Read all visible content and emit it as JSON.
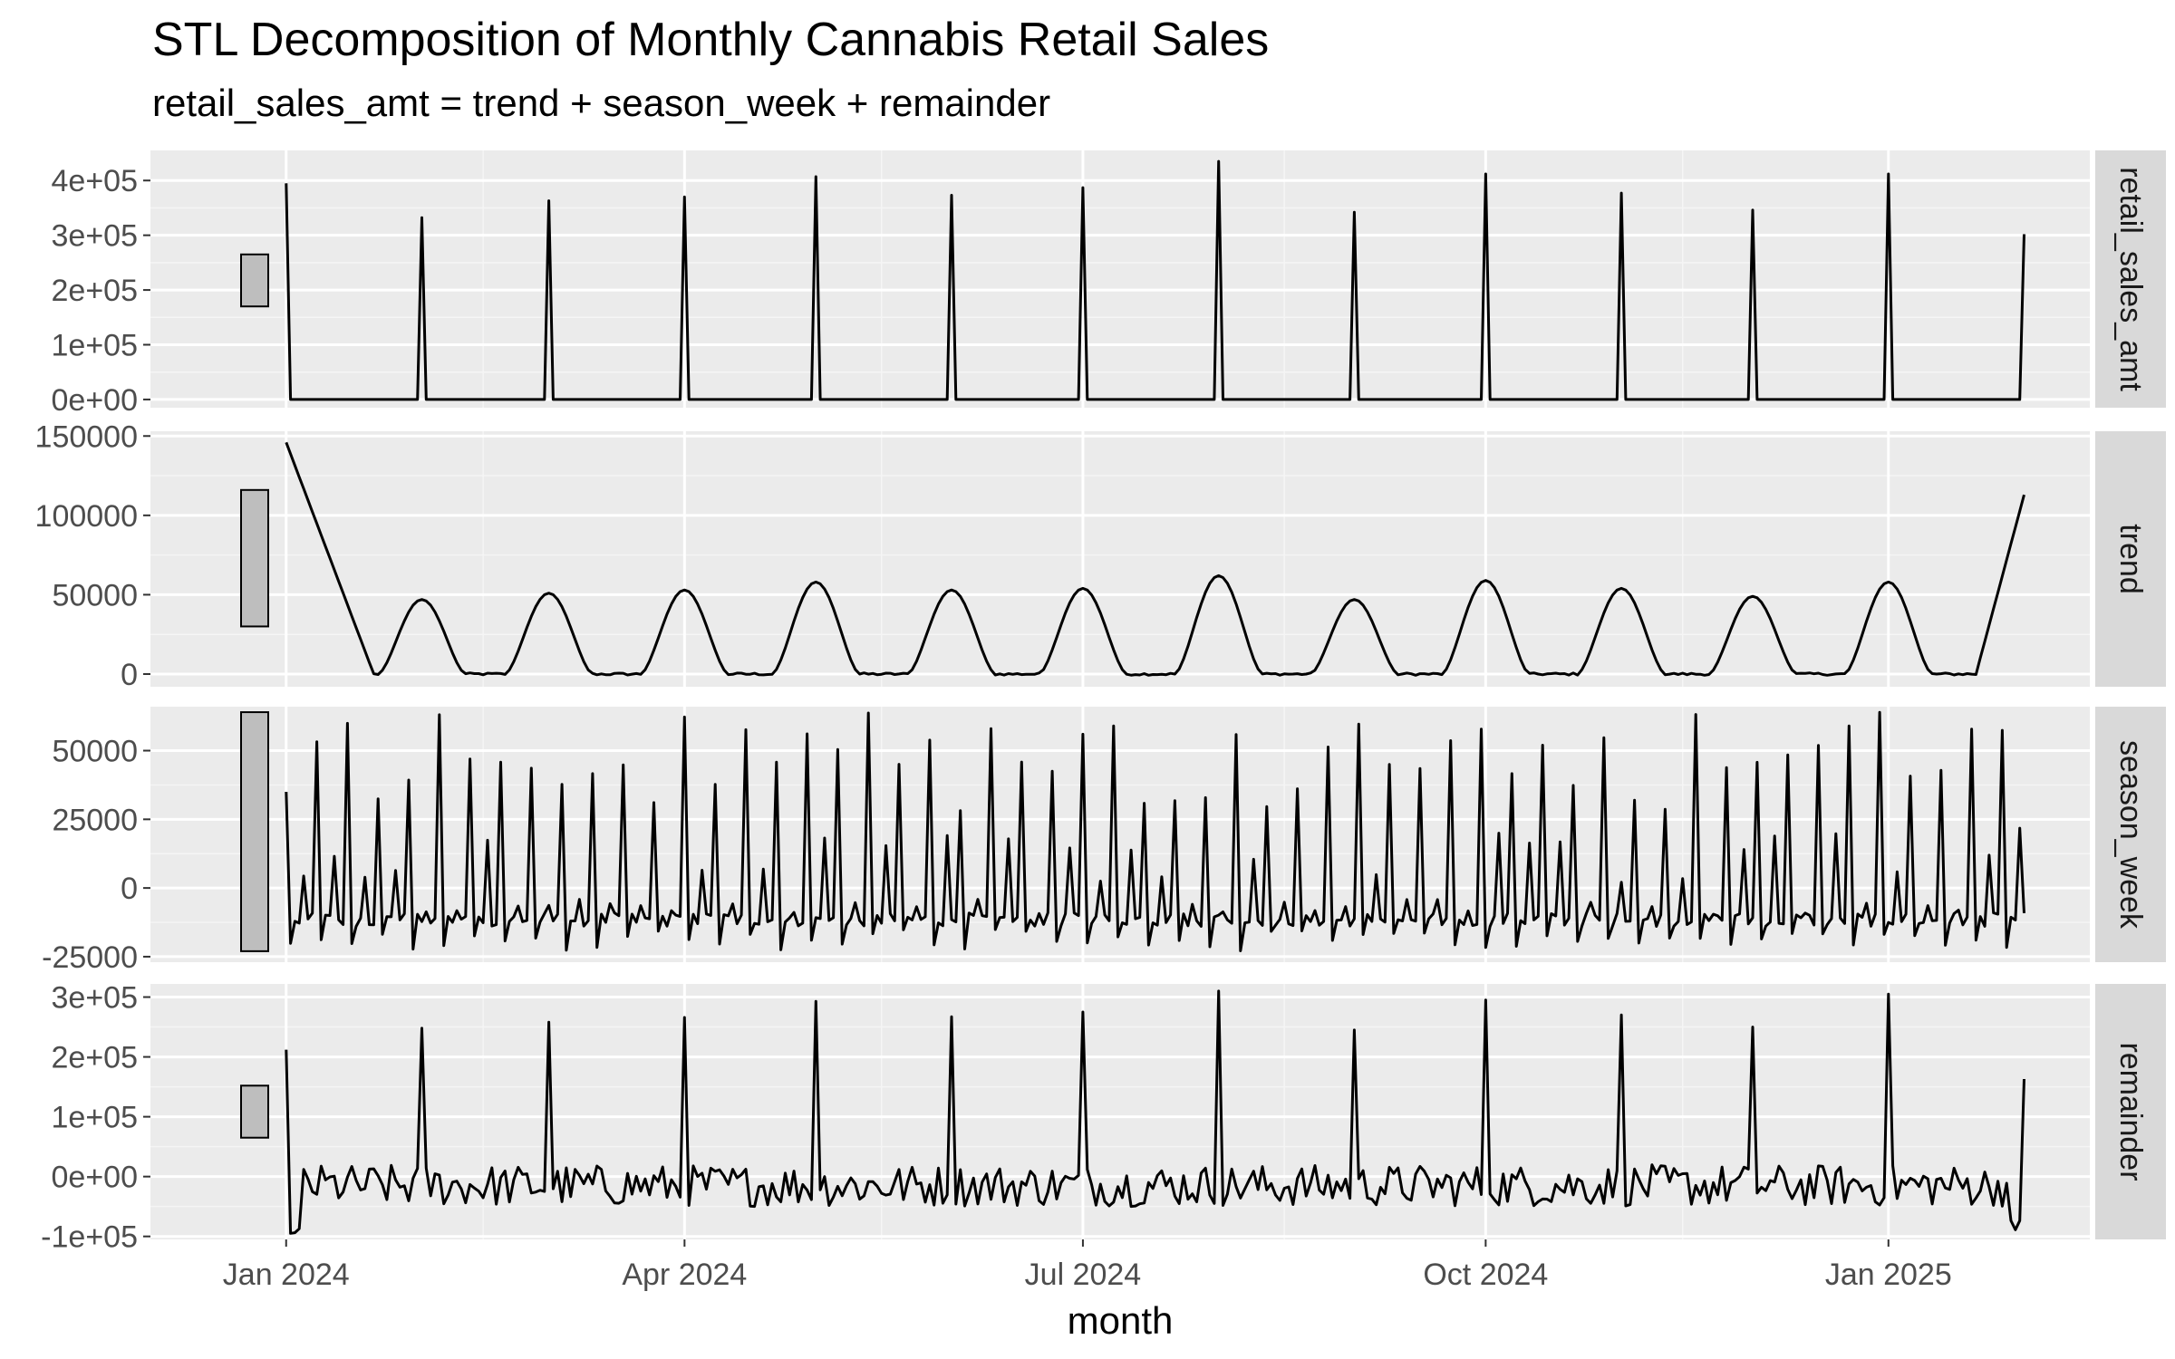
{
  "title": "STL Decomposition of Monthly Cannabis Retail Sales",
  "subtitle": "retail_sales_amt = trend + season_week + remainder",
  "chart_data": {
    "type": "line",
    "title": "STL Decomposition of Monthly Cannabis Retail Sales",
    "subtitle": "retail_sales_amt = trend + season_week + remainder",
    "xlabel": "month",
    "ylabel": "",
    "x_ticks": [
      "Jan 2024",
      "Apr 2024",
      "Jul 2024",
      "Oct 2024",
      "Jan 2025"
    ],
    "xlim": [
      "2023-12-01",
      "2025-02-16"
    ],
    "line_color": "#000000",
    "panel_background": "#ebebeb",
    "strip_background": "#d9d9d9",
    "range_bar_fill": "#bebebe",
    "grid": true,
    "legend": "none",
    "panels": [
      {
        "name": "retail_sales_amt",
        "ylim": [
          -15000,
          455000
        ],
        "y_ticks": [
          0,
          100000,
          200000,
          300000,
          400000
        ],
        "y_tick_labels": [
          "0e+00",
          "1e+05",
          "2e+05",
          "3e+05",
          "4e+05"
        ],
        "range_bar": [
          170000,
          265000
        ],
        "spikes": [
          {
            "x": "2024-01-01",
            "value": 395000
          },
          {
            "x": "2024-02-01",
            "value": 332000
          },
          {
            "x": "2024-03-01",
            "value": 363000
          },
          {
            "x": "2024-04-01",
            "value": 370000
          },
          {
            "x": "2024-05-01",
            "value": 407000
          },
          {
            "x": "2024-06-01",
            "value": 373000
          },
          {
            "x": "2024-07-01",
            "value": 387000
          },
          {
            "x": "2024-08-01",
            "value": 435000
          },
          {
            "x": "2024-09-01",
            "value": 342000
          },
          {
            "x": "2024-10-01",
            "value": 412000
          },
          {
            "x": "2024-11-01",
            "value": 377000
          },
          {
            "x": "2024-12-01",
            "value": 346000
          },
          {
            "x": "2025-01-01",
            "value": 412000
          },
          {
            "x": "2025-02-01",
            "value": 302000
          }
        ]
      },
      {
        "name": "trend",
        "ylim": [
          -8000,
          153000
        ],
        "y_ticks": [
          0,
          50000,
          100000,
          150000
        ],
        "y_tick_labels": [
          "0",
          "50000",
          "100000",
          "150000"
        ],
        "range_bar": [
          30000,
          116000
        ],
        "start_value": 146000,
        "end_value": 113000,
        "peaks": [
          {
            "x": "2024-02-01",
            "value": 47000
          },
          {
            "x": "2024-03-01",
            "value": 51000
          },
          {
            "x": "2024-04-01",
            "value": 53000
          },
          {
            "x": "2024-05-01",
            "value": 58000
          },
          {
            "x": "2024-06-01",
            "value": 53000
          },
          {
            "x": "2024-07-01",
            "value": 54000
          },
          {
            "x": "2024-08-01",
            "value": 62000
          },
          {
            "x": "2024-09-01",
            "value": 47000
          },
          {
            "x": "2024-10-01",
            "value": 59000
          },
          {
            "x": "2024-11-01",
            "value": 54000
          },
          {
            "x": "2024-12-01",
            "value": 49000
          },
          {
            "x": "2025-01-01",
            "value": 58000
          }
        ]
      },
      {
        "name": "season_week",
        "ylim": [
          -27000,
          66000
        ],
        "y_ticks": [
          -25000,
          0,
          25000,
          50000
        ],
        "y_tick_labels": [
          "-25000",
          "0",
          "25000",
          "50000"
        ],
        "range_bar": [
          -23000,
          64000
        ],
        "peak_range": [
          28000,
          64000
        ],
        "trough_range": [
          -23000,
          -9000
        ]
      },
      {
        "name": "remainder",
        "ylim": [
          -105000,
          322000
        ],
        "y_ticks": [
          -100000,
          0,
          100000,
          200000,
          300000
        ],
        "y_tick_labels": [
          "-1e+05",
          "0e+00",
          "1e+05",
          "2e+05",
          "3e+05"
        ],
        "range_bar": [
          65000,
          152000
        ],
        "spikes": [
          {
            "x": "2024-01-01",
            "value": 212000
          },
          {
            "x": "2024-02-01",
            "value": 248000
          },
          {
            "x": "2024-03-01",
            "value": 258000
          },
          {
            "x": "2024-04-01",
            "value": 266000
          },
          {
            "x": "2024-05-01",
            "value": 293000
          },
          {
            "x": "2024-06-01",
            "value": 267000
          },
          {
            "x": "2024-07-01",
            "value": 275000
          },
          {
            "x": "2024-08-01",
            "value": 310000
          },
          {
            "x": "2024-09-01",
            "value": 245000
          },
          {
            "x": "2024-10-01",
            "value": 295000
          },
          {
            "x": "2024-11-01",
            "value": 270000
          },
          {
            "x": "2024-12-01",
            "value": 250000
          },
          {
            "x": "2025-01-01",
            "value": 305000
          },
          {
            "x": "2025-02-01",
            "value": 163000
          }
        ],
        "baseline_range": [
          -50000,
          20000
        ],
        "min_value": -95000
      }
    ]
  }
}
